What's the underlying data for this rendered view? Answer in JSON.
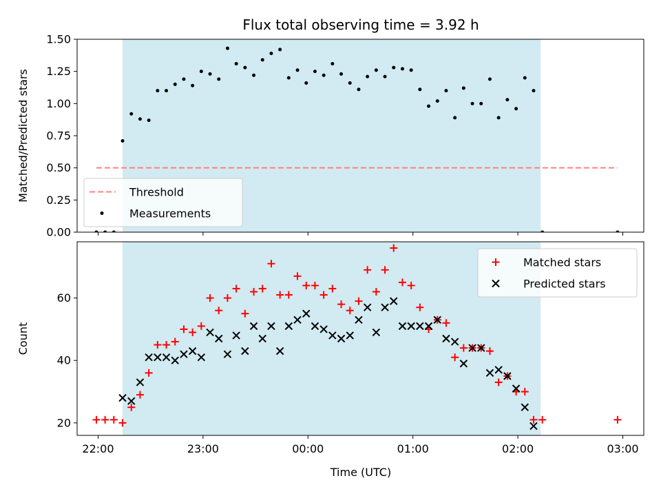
{
  "chart_data": {
    "title": "Flux total observing time = 3.92 h",
    "xlabel": "Time (UTC)",
    "x_unit": "UTC time (HH:MM, date rolls over at 00:00)",
    "x_range": [
      "21:48",
      "03:12"
    ],
    "x_ticks": [
      "22:00",
      "23:00",
      "00:00",
      "01:00",
      "02:00",
      "03:00"
    ],
    "shaded_interval": [
      "22:14",
      "02:13"
    ],
    "shaded_color": "#add8e6",
    "panels": [
      {
        "type": "scatter",
        "ylabel": "Matched/Predicted stars",
        "ylim": [
          0,
          1.5
        ],
        "y_ticks": [
          "0.00",
          "0.25",
          "0.50",
          "0.75",
          "1.00",
          "1.25",
          "1.50"
        ],
        "legend_position": "lower-left",
        "series": [
          {
            "name": "Threshold",
            "kind": "line",
            "style": "dashed",
            "color": "#ff7f7f",
            "points": [
              [
                "21:59",
                0.5
              ],
              [
                "02:57",
                0.5
              ]
            ]
          },
          {
            "name": "Measurements",
            "kind": "points",
            "marker": "dot",
            "color": "#000000",
            "points": [
              [
                "21:59",
                0.0
              ],
              [
                "22:04",
                0.0
              ],
              [
                "22:09",
                0.0
              ],
              [
                "22:14",
                0.71
              ],
              [
                "22:19",
                0.92
              ],
              [
                "22:24",
                0.88
              ],
              [
                "22:29",
                0.87
              ],
              [
                "22:34",
                1.1
              ],
              [
                "22:39",
                1.1
              ],
              [
                "22:44",
                1.15
              ],
              [
                "22:49",
                1.19
              ],
              [
                "22:54",
                1.14
              ],
              [
                "22:59",
                1.25
              ],
              [
                "23:04",
                1.23
              ],
              [
                "23:09",
                1.19
              ],
              [
                "23:14",
                1.43
              ],
              [
                "23:19",
                1.31
              ],
              [
                "23:24",
                1.28
              ],
              [
                "23:29",
                1.22
              ],
              [
                "23:34",
                1.34
              ],
              [
                "23:39",
                1.39
              ],
              [
                "23:44",
                1.42
              ],
              [
                "23:49",
                1.2
              ],
              [
                "23:54",
                1.26
              ],
              [
                "23:59",
                1.16
              ],
              [
                "00:04",
                1.25
              ],
              [
                "00:09",
                1.22
              ],
              [
                "00:14",
                1.31
              ],
              [
                "00:19",
                1.23
              ],
              [
                "00:24",
                1.16
              ],
              [
                "00:29",
                1.11
              ],
              [
                "00:34",
                1.21
              ],
              [
                "00:39",
                1.26
              ],
              [
                "00:44",
                1.21
              ],
              [
                "00:49",
                1.28
              ],
              [
                "00:54",
                1.27
              ],
              [
                "00:59",
                1.26
              ],
              [
                "01:04",
                1.11
              ],
              [
                "01:09",
                0.98
              ],
              [
                "01:14",
                1.02
              ],
              [
                "01:19",
                1.1
              ],
              [
                "01:24",
                0.89
              ],
              [
                "01:29",
                1.12
              ],
              [
                "01:34",
                1.0
              ],
              [
                "01:39",
                1.0
              ],
              [
                "01:44",
                1.19
              ],
              [
                "01:49",
                0.89
              ],
              [
                "01:54",
                1.03
              ],
              [
                "01:59",
                0.96
              ],
              [
                "02:04",
                1.2
              ],
              [
                "02:09",
                1.1
              ],
              [
                "02:14",
                0.0
              ],
              [
                "02:57",
                0.0
              ]
            ]
          }
        ]
      },
      {
        "type": "scatter",
        "ylabel": "Count",
        "ylim": [
          16,
          78
        ],
        "y_ticks": [
          "20",
          "40",
          "60"
        ],
        "legend_position": "upper-right",
        "series": [
          {
            "name": "Matched stars",
            "kind": "points",
            "marker": "plus",
            "color": "#ff0000",
            "points": [
              [
                "21:59",
                21
              ],
              [
                "22:04",
                21
              ],
              [
                "22:09",
                21
              ],
              [
                "22:14",
                20
              ],
              [
                "22:19",
                25
              ],
              [
                "22:24",
                29
              ],
              [
                "22:29",
                36
              ],
              [
                "22:34",
                45
              ],
              [
                "22:39",
                45
              ],
              [
                "22:44",
                46
              ],
              [
                "22:49",
                50
              ],
              [
                "22:54",
                49
              ],
              [
                "22:59",
                51
              ],
              [
                "23:04",
                60
              ],
              [
                "23:09",
                56
              ],
              [
                "23:14",
                60
              ],
              [
                "23:19",
                63
              ],
              [
                "23:24",
                55
              ],
              [
                "23:29",
                62
              ],
              [
                "23:34",
                63
              ],
              [
                "23:39",
                71
              ],
              [
                "23:44",
                61
              ],
              [
                "23:49",
                61
              ],
              [
                "23:54",
                67
              ],
              [
                "23:59",
                64
              ],
              [
                "00:04",
                64
              ],
              [
                "00:09",
                61
              ],
              [
                "00:14",
                63
              ],
              [
                "00:19",
                58
              ],
              [
                "00:24",
                56
              ],
              [
                "00:29",
                59
              ],
              [
                "00:34",
                69
              ],
              [
                "00:39",
                62
              ],
              [
                "00:44",
                69
              ],
              [
                "00:49",
                76
              ],
              [
                "00:54",
                65
              ],
              [
                "00:59",
                64
              ],
              [
                "01:04",
                57
              ],
              [
                "01:09",
                50
              ],
              [
                "01:14",
                53
              ],
              [
                "01:19",
                52
              ],
              [
                "01:24",
                41
              ],
              [
                "01:29",
                44
              ],
              [
                "01:34",
                44
              ],
              [
                "01:39",
                44
              ],
              [
                "01:44",
                43
              ],
              [
                "01:49",
                33
              ],
              [
                "01:54",
                35
              ],
              [
                "01:59",
                30
              ],
              [
                "02:04",
                30
              ],
              [
                "02:09",
                21
              ],
              [
                "02:14",
                21
              ],
              [
                "02:57",
                21
              ]
            ]
          },
          {
            "name": "Predicted stars",
            "kind": "points",
            "marker": "x",
            "color": "#000000",
            "points": [
              [
                "22:14",
                28
              ],
              [
                "22:19",
                27
              ],
              [
                "22:24",
                33
              ],
              [
                "22:29",
                41
              ],
              [
                "22:34",
                41
              ],
              [
                "22:39",
                41
              ],
              [
                "22:44",
                40
              ],
              [
                "22:49",
                42
              ],
              [
                "22:54",
                43
              ],
              [
                "22:59",
                41
              ],
              [
                "23:04",
                49
              ],
              [
                "23:09",
                47
              ],
              [
                "23:14",
                42
              ],
              [
                "23:19",
                48
              ],
              [
                "23:24",
                43
              ],
              [
                "23:29",
                51
              ],
              [
                "23:34",
                47
              ],
              [
                "23:39",
                51
              ],
              [
                "23:44",
                43
              ],
              [
                "23:49",
                51
              ],
              [
                "23:54",
                53
              ],
              [
                "23:59",
                55
              ],
              [
                "00:04",
                51
              ],
              [
                "00:09",
                50
              ],
              [
                "00:14",
                48
              ],
              [
                "00:19",
                47
              ],
              [
                "00:24",
                48
              ],
              [
                "00:29",
                53
              ],
              [
                "00:34",
                57
              ],
              [
                "00:39",
                49
              ],
              [
                "00:44",
                57
              ],
              [
                "00:49",
                59
              ],
              [
                "00:54",
                51
              ],
              [
                "00:59",
                51
              ],
              [
                "01:04",
                51
              ],
              [
                "01:09",
                51
              ],
              [
                "01:14",
                53
              ],
              [
                "01:19",
                47
              ],
              [
                "01:24",
                46
              ],
              [
                "01:29",
                39
              ],
              [
                "01:34",
                44
              ],
              [
                "01:39",
                44
              ],
              [
                "01:44",
                36
              ],
              [
                "01:49",
                37
              ],
              [
                "01:54",
                35
              ],
              [
                "01:59",
                31
              ],
              [
                "02:04",
                25
              ],
              [
                "02:09",
                19
              ]
            ]
          }
        ]
      }
    ]
  }
}
